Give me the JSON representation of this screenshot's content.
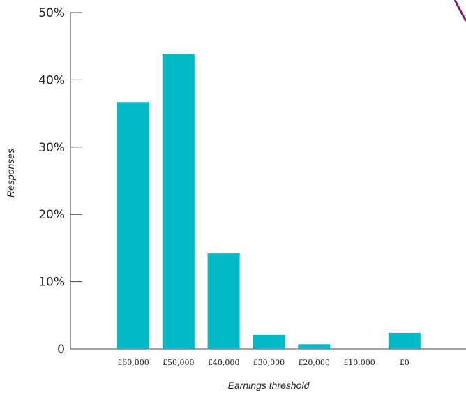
{
  "chart_data": {
    "type": "bar",
    "title": "",
    "xlabel": "Earnings threshold",
    "ylabel": "Responses",
    "categories": [
      "£60,000",
      "£50,000",
      "£40,000",
      "£30,000",
      "£20,000",
      "£10,000",
      "£0"
    ],
    "values": [
      36.7,
      43.8,
      14.2,
      2.1,
      0.7,
      0,
      2.4
    ],
    "ylim": [
      0,
      50
    ],
    "yticks": [
      {
        "value": 0,
        "label": "0"
      },
      {
        "value": 10,
        "label": "10%"
      },
      {
        "value": 20,
        "label": "20%"
      },
      {
        "value": 30,
        "label": "30%"
      },
      {
        "value": 40,
        "label": "40%"
      },
      {
        "value": 50,
        "label": "50%"
      }
    ],
    "grid": false,
    "bar_color": "#00b9c6",
    "axis_color": "#444444",
    "decoration_color": "#7a1f6e"
  }
}
